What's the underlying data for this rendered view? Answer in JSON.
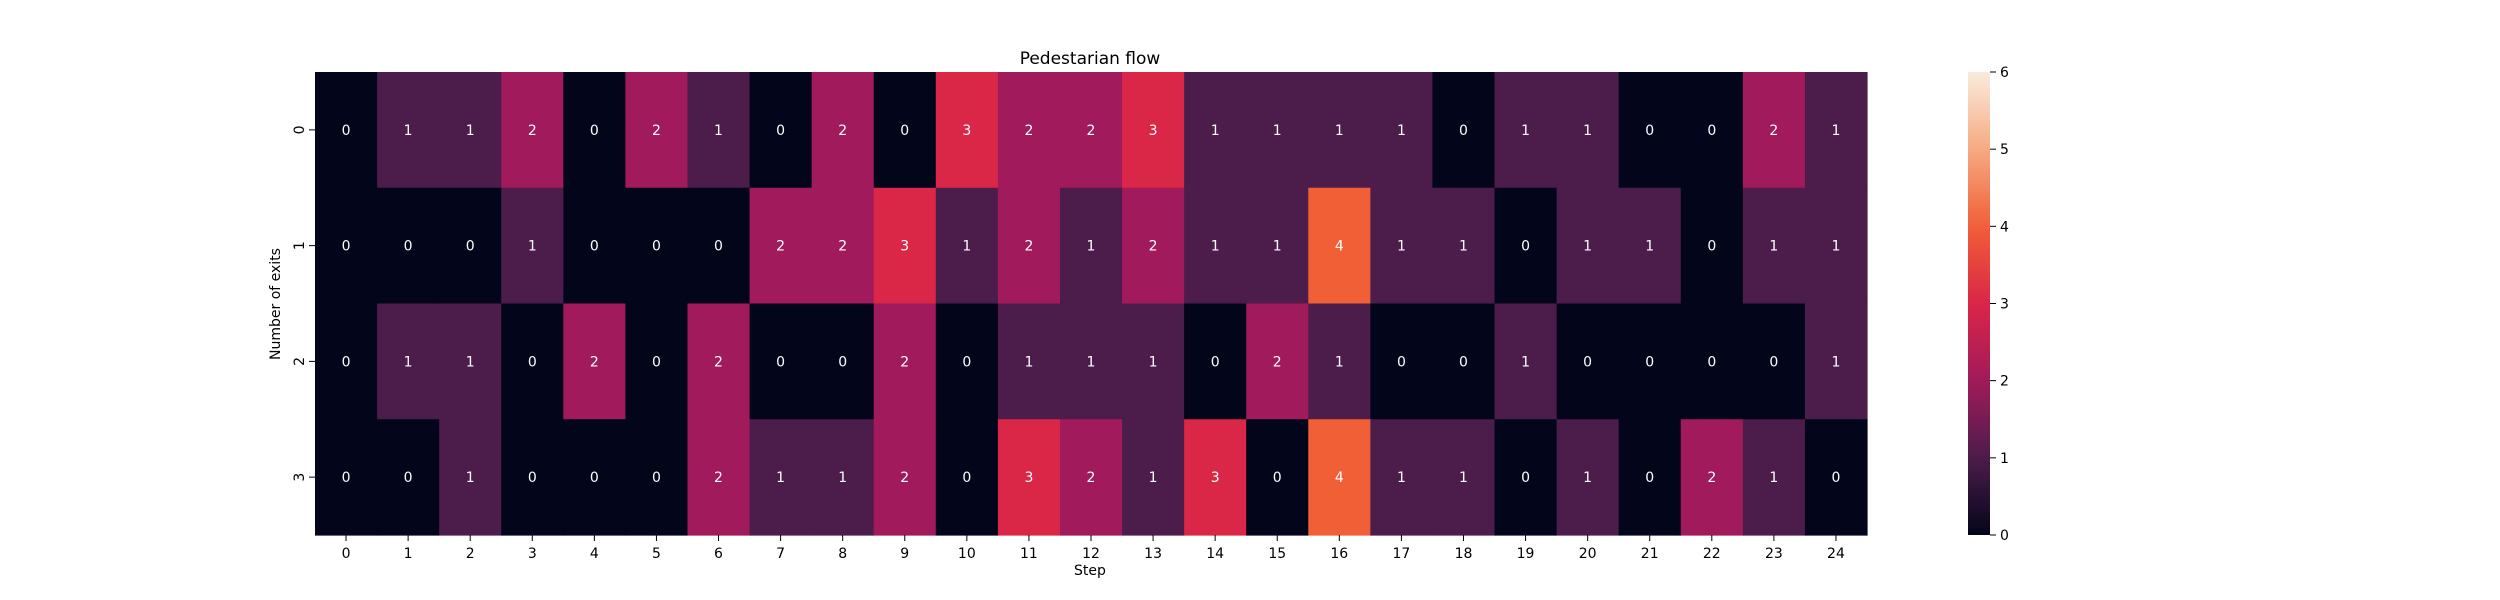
{
  "chart_data": {
    "type": "heatmap",
    "title": "Pedestarian flow",
    "xlabel": "Step",
    "ylabel": "Number of exits",
    "x_ticks": [
      "0",
      "1",
      "2",
      "3",
      "4",
      "5",
      "6",
      "7",
      "8",
      "9",
      "10",
      "11",
      "12",
      "13",
      "14",
      "15",
      "16",
      "17",
      "18",
      "19",
      "20",
      "21",
      "22",
      "23",
      "24"
    ],
    "y_ticks": [
      "0",
      "1",
      "2",
      "3"
    ],
    "values": [
      [
        0,
        1,
        1,
        2,
        0,
        2,
        1,
        0,
        2,
        0,
        3,
        2,
        2,
        3,
        1,
        1,
        1,
        1,
        0,
        1,
        1,
        0,
        0,
        2,
        1
      ],
      [
        0,
        0,
        0,
        1,
        0,
        0,
        0,
        2,
        2,
        3,
        1,
        2,
        1,
        2,
        1,
        1,
        4,
        1,
        1,
        0,
        1,
        1,
        0,
        1,
        1
      ],
      [
        0,
        1,
        1,
        0,
        2,
        0,
        2,
        0,
        0,
        2,
        0,
        1,
        1,
        1,
        0,
        2,
        1,
        0,
        0,
        1,
        0,
        0,
        0,
        0,
        1
      ],
      [
        0,
        0,
        1,
        0,
        0,
        0,
        2,
        1,
        1,
        2,
        0,
        3,
        2,
        1,
        3,
        0,
        4,
        1,
        1,
        0,
        1,
        0,
        2,
        1,
        0
      ]
    ],
    "vmin": 0,
    "vmax": 6,
    "colorbar_ticks": [
      "0",
      "1",
      "2",
      "3",
      "4",
      "5",
      "6"
    ],
    "colormap": "rocket",
    "annotate": true
  }
}
